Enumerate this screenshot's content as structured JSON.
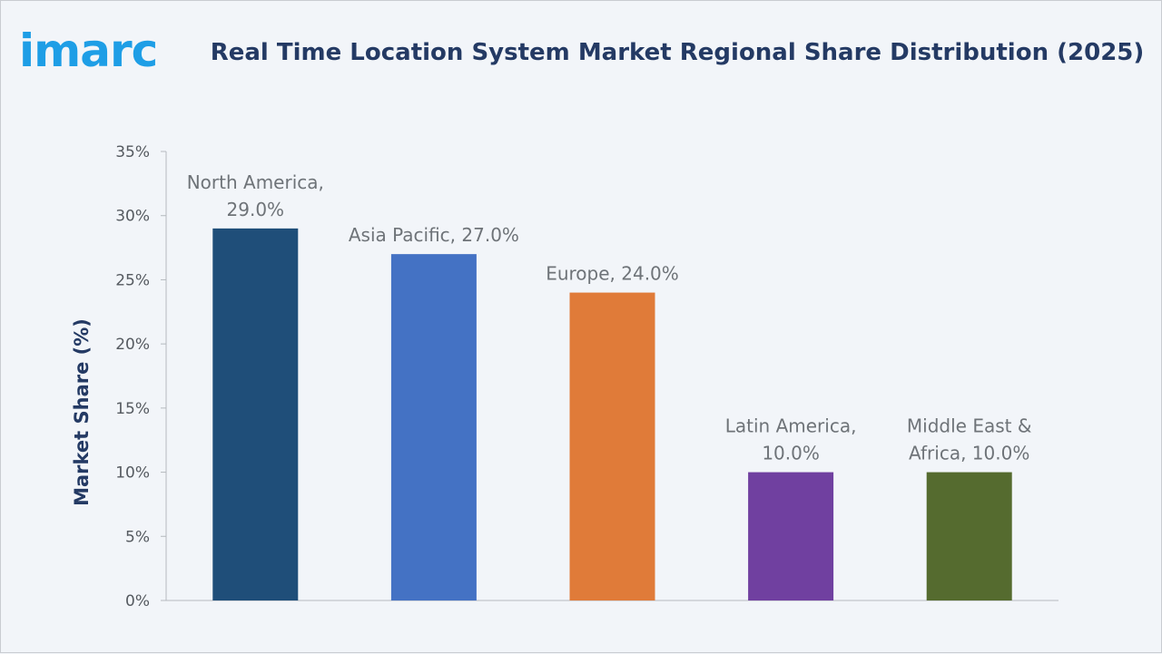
{
  "brand": {
    "logo_text": "imarc",
    "logo_color": "#1e9ee6"
  },
  "chart_data": {
    "type": "bar",
    "title": "Real Time Location System Market Regional Share Distribution (2025)",
    "xlabel": "",
    "ylabel": "Market Share (%)",
    "ylim": [
      0,
      35
    ],
    "yticks": [
      "0%",
      "5%",
      "10%",
      "15%",
      "20%",
      "25%",
      "30%",
      "35%"
    ],
    "grid": false,
    "legend": "none",
    "categories": [
      "North America",
      "Asia Pacific",
      "Europe",
      "Latin America",
      "Middle East & Africa"
    ],
    "values": [
      29.0,
      27.0,
      24.0,
      10.0,
      10.0
    ],
    "data_labels": [
      [
        "North America,",
        "29.0%"
      ],
      [
        "Asia Pacific, 27.0%"
      ],
      [
        "Europe, 24.0%"
      ],
      [
        "Latin America,",
        "10.0%"
      ],
      [
        "Middle East &",
        "Africa, 10.0%"
      ]
    ],
    "colors": [
      "#1f4e79",
      "#4472c4",
      "#e07b39",
      "#7040a0",
      "#556b2f"
    ]
  }
}
